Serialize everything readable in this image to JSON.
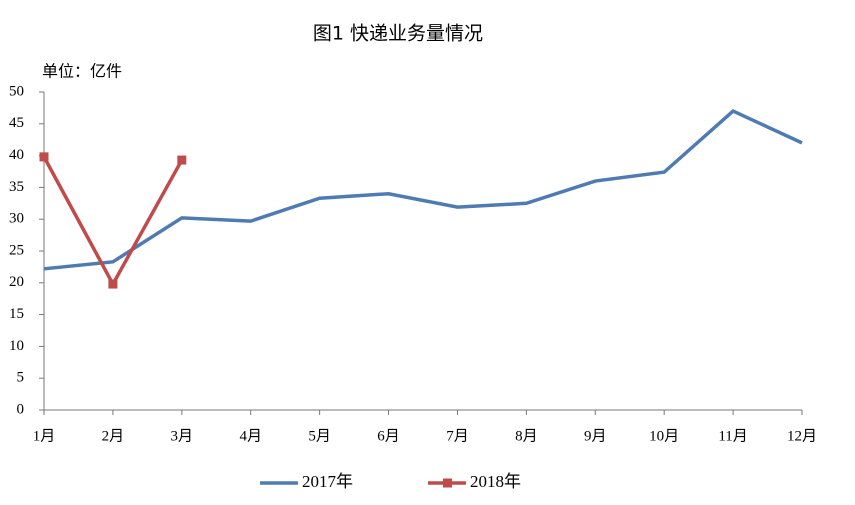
{
  "chart_data": {
    "type": "line",
    "title": "图1    快递业务量情况",
    "y_unit_label": "单位：亿件",
    "categories": [
      "1月",
      "2月",
      "3月",
      "4月",
      "5月",
      "6月",
      "7月",
      "8月",
      "9月",
      "10月",
      "11月",
      "12月"
    ],
    "series": [
      {
        "name": "2017年",
        "color": "#4f7bb3",
        "marker": "none",
        "values": [
          22.2,
          23.3,
          30.2,
          29.7,
          33.3,
          34.0,
          31.9,
          32.5,
          36.0,
          37.4,
          47.0,
          42.0
        ]
      },
      {
        "name": "2018年",
        "color": "#bf4b4a",
        "marker": "square",
        "values": [
          39.8,
          19.8,
          39.3,
          null,
          null,
          null,
          null,
          null,
          null,
          null,
          null,
          null
        ]
      }
    ],
    "ylim": [
      0,
      50
    ],
    "yticks": [
      0,
      5,
      10,
      15,
      20,
      25,
      30,
      35,
      40,
      45,
      50
    ],
    "grid": false,
    "legend": "bottom"
  }
}
